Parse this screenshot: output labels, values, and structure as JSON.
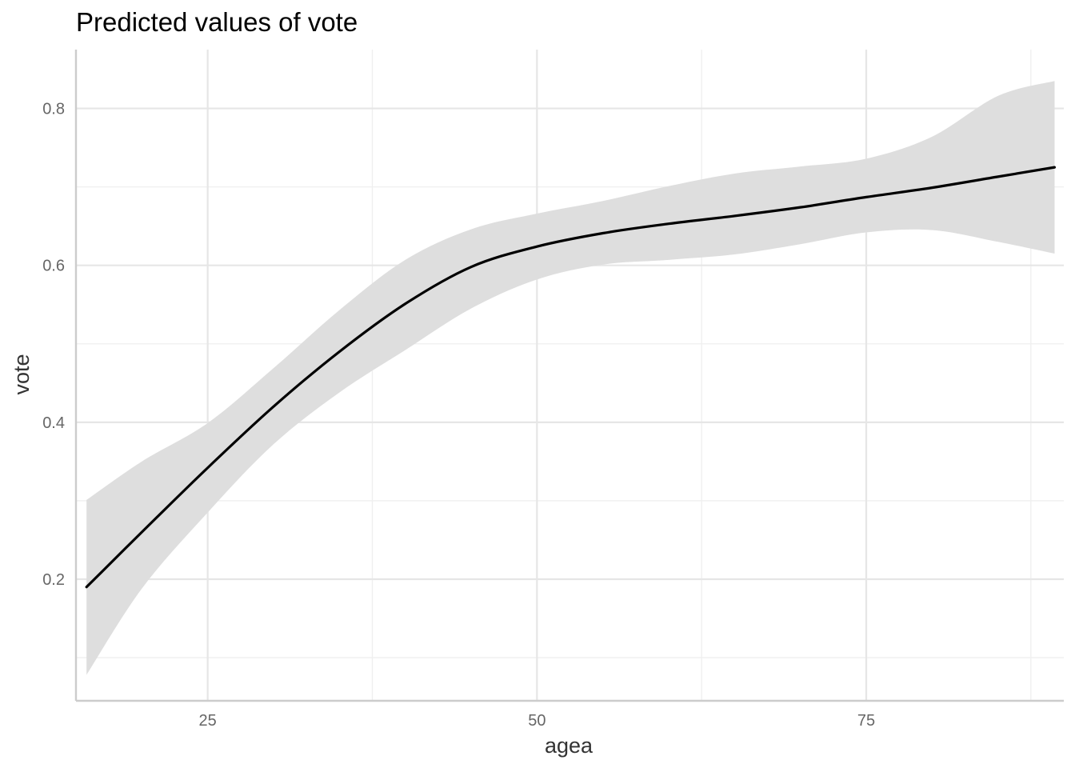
{
  "chart_data": {
    "type": "line",
    "title": "Predicted values of vote",
    "xlabel": "agea",
    "ylabel": "vote",
    "xlim": [
      15,
      90
    ],
    "ylim": [
      0.045,
      0.875
    ],
    "x_ticks": [
      25,
      50,
      75
    ],
    "x_tick_labels": [
      "25",
      "50",
      "75"
    ],
    "x_minor_ticks": [
      37.5,
      62.5,
      87.5
    ],
    "y_ticks": [
      0.2,
      0.4,
      0.6,
      0.8
    ],
    "y_tick_labels": [
      "0.2",
      "0.4",
      "0.6",
      "0.8"
    ],
    "y_minor_ticks": [
      0.1,
      0.3,
      0.5,
      0.7
    ],
    "grid": true,
    "legend": "none",
    "colors": {
      "line": "#000000",
      "band": "#dedede"
    },
    "series": [
      {
        "x": [
          15.8,
          20,
          25,
          30,
          35,
          40,
          45,
          50,
          55,
          60,
          65,
          70,
          75,
          80,
          85,
          89.3
        ],
        "y": [
          0.19,
          0.26,
          0.342,
          0.42,
          0.49,
          0.551,
          0.598,
          0.624,
          0.641,
          0.653,
          0.663,
          0.674,
          0.687,
          0.699,
          0.713,
          0.725
        ],
        "ci_low": [
          0.078,
          0.188,
          0.285,
          0.372,
          0.438,
          0.492,
          0.545,
          0.582,
          0.601,
          0.607,
          0.614,
          0.627,
          0.642,
          0.645,
          0.63,
          0.615
        ],
        "ci_high": [
          0.301,
          0.35,
          0.399,
          0.469,
          0.543,
          0.607,
          0.646,
          0.666,
          0.682,
          0.701,
          0.717,
          0.726,
          0.736,
          0.764,
          0.816,
          0.835
        ]
      }
    ]
  }
}
